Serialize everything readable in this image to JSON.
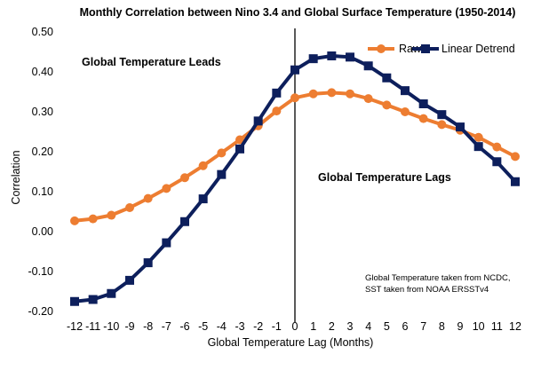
{
  "chart_data": {
    "type": "line",
    "title": "Monthly Correlation between Nino 3.4 and Global Surface Temperature (1950-2014)",
    "xlabel": "Global Temperature Lag (Months)",
    "ylabel": "Correlation",
    "x": [
      -12,
      -11,
      -10,
      -9,
      -8,
      -7,
      -6,
      -5,
      -4,
      -3,
      -2,
      -1,
      0,
      1,
      2,
      3,
      4,
      5,
      6,
      7,
      8,
      9,
      10,
      11,
      12
    ],
    "ylim": [
      -0.2,
      0.5
    ],
    "yticks": [
      "0.50",
      "0.40",
      "0.30",
      "0.20",
      "0.10",
      "0.00",
      "-0.10",
      "-0.20"
    ],
    "ytick_values": [
      0.5,
      0.4,
      0.3,
      0.2,
      0.1,
      0.0,
      -0.1,
      -0.2
    ],
    "xticks": [
      "-12",
      "-11",
      "-10",
      "-9",
      "-8",
      "-7",
      "-6",
      "-5",
      "-4",
      "-3",
      "-2",
      "-1",
      "0",
      "1",
      "2",
      "3",
      "4",
      "5",
      "6",
      "7",
      "8",
      "9",
      "10",
      "11",
      "12"
    ],
    "grid": false,
    "legend_position": "top-right",
    "series": [
      {
        "name": "Raw",
        "color": "#ED7D31",
        "marker": "circle",
        "values": [
          0.027,
          0.032,
          0.041,
          0.06,
          0.083,
          0.108,
          0.135,
          0.165,
          0.197,
          0.23,
          0.265,
          0.302,
          0.335,
          0.345,
          0.348,
          0.345,
          0.333,
          0.317,
          0.3,
          0.283,
          0.268,
          0.254,
          0.236,
          0.212,
          0.188
        ]
      },
      {
        "name": "Linear Detrend",
        "color": "#0D1F5C",
        "marker": "square",
        "values": [
          -0.175,
          -0.17,
          -0.155,
          -0.122,
          -0.078,
          -0.028,
          0.025,
          0.082,
          0.143,
          0.207,
          0.277,
          0.347,
          0.405,
          0.433,
          0.44,
          0.437,
          0.415,
          0.385,
          0.353,
          0.32,
          0.293,
          0.262,
          0.213,
          0.175,
          0.125
        ]
      }
    ],
    "annotations": {
      "leads": "Global Temperature  Leads",
      "lags": "Global Temperature  Lags",
      "note_line1": "Global Temperature taken from NCDC,",
      "note_line2": "SST taken from NOAA ERSSTv4"
    },
    "vertical_line_at_x": 0
  }
}
